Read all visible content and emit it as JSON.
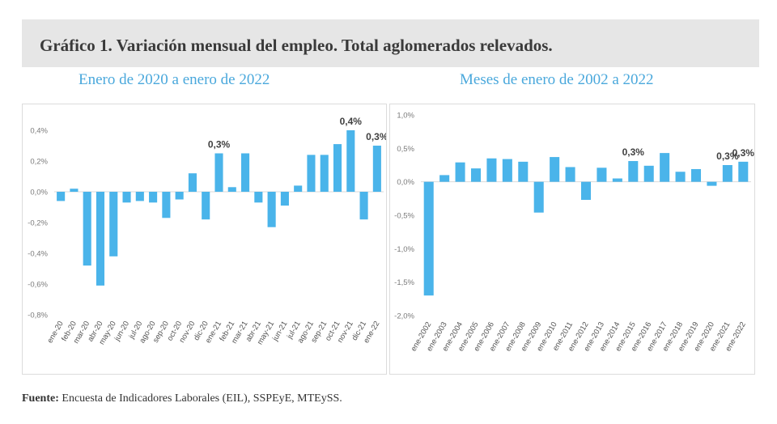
{
  "figure": {
    "title": "Gráfico 1. Variación mensual del empleo. Total aglomerados relevados.",
    "source_label": "Fuente:",
    "source_text": "Encuesta de Indicadores Laborales (EIL), SSPEyE, MTEySS."
  },
  "colors": {
    "bar": "#4ab4ea",
    "title_bg": "#e6e6e6",
    "subtitle": "#4aa8dc",
    "tick": "#7a7a7a",
    "grid": "#d9d9d9"
  },
  "chart_data": [
    {
      "type": "bar",
      "title": "Enero de 2020 a enero de 2022",
      "categories": [
        "ene-20",
        "feb-20",
        "mar-20",
        "abr-20",
        "may-20",
        "jun-20",
        "jul-20",
        "ago-20",
        "sep-20",
        "oct-20",
        "nov-20",
        "dic-20",
        "ene-21",
        "feb-21",
        "mar-21",
        "abr-21",
        "may-21",
        "jun-21",
        "jul-21",
        "ago-21",
        "sep-21",
        "oct-21",
        "nov-21",
        "dic-21",
        "ene-22"
      ],
      "values": [
        -0.06,
        0.02,
        -0.48,
        -0.61,
        -0.42,
        -0.07,
        -0.06,
        -0.07,
        -0.17,
        -0.05,
        0.12,
        -0.18,
        0.25,
        0.03,
        0.25,
        -0.07,
        -0.23,
        -0.09,
        0.04,
        0.24,
        0.24,
        0.31,
        0.4,
        -0.18,
        0.3
      ],
      "ylim": [
        -0.8,
        0.4
      ],
      "yticks": [
        -0.8,
        -0.6,
        -0.4,
        -0.2,
        0.0,
        0.2,
        0.4
      ],
      "ytick_labels": [
        "-0,8%",
        "-0,6%",
        "-0,4%",
        "-0,2%",
        "0,0%",
        "0,2%",
        "0,4%"
      ],
      "data_labels": [
        {
          "index": 12,
          "text": "0,3%"
        },
        {
          "index": 22,
          "text": "0,4%"
        },
        {
          "index": 24,
          "text": "0,3%"
        }
      ]
    },
    {
      "type": "bar",
      "title": "Meses de enero de 2002 a 2022",
      "categories": [
        "ene-2002",
        "ene-2003",
        "ene-2004",
        "ene-2005",
        "ene-2006",
        "ene-2007",
        "ene-2008",
        "ene-2009",
        "ene-2010",
        "ene-2011",
        "ene-2012",
        "ene-2013",
        "ene-2014",
        "ene-2015",
        "ene-2016",
        "ene-2017",
        "ene-2018",
        "ene-2019",
        "ene-2020",
        "ene-2021",
        "ene-2022"
      ],
      "values": [
        -1.7,
        0.1,
        0.29,
        0.2,
        0.35,
        0.34,
        0.3,
        -0.46,
        0.37,
        0.22,
        -0.27,
        0.21,
        0.05,
        0.31,
        0.24,
        0.43,
        0.15,
        0.19,
        -0.06,
        0.25,
        0.3
      ],
      "ylim": [
        -2.0,
        1.0
      ],
      "yticks": [
        -2.0,
        -1.5,
        -1.0,
        -0.5,
        0.0,
        0.5,
        1.0
      ],
      "ytick_labels": [
        "-2,0%",
        "-1,5%",
        "-1,0%",
        "-0,5%",
        "0,0%",
        "0,5%",
        "1,0%"
      ],
      "data_labels": [
        {
          "index": 13,
          "text": "0,3%"
        },
        {
          "index": 19,
          "text": "0,3%"
        },
        {
          "index": 20,
          "text": "0,3%"
        }
      ]
    }
  ]
}
